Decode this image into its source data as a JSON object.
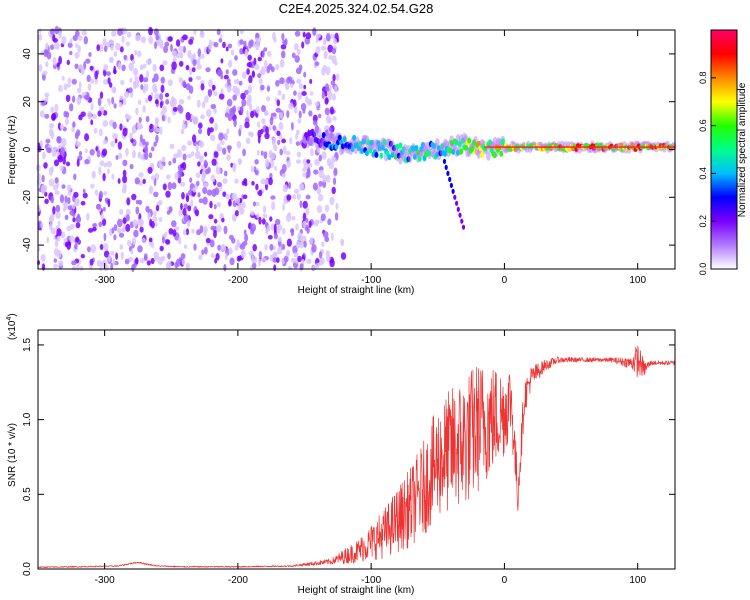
{
  "chart_data": [
    {
      "type": "heatmap",
      "title": "C2E4.2025.324.02.54.G28",
      "xlabel": "Height of straight line (km)",
      "ylabel": "Frequency (Hz)",
      "xlim": [
        -350,
        128
      ],
      "ylim": [
        -50,
        50
      ],
      "xticks": [
        -300,
        -200,
        -100,
        0,
        100
      ],
      "xtick_labels": [
        "-300",
        "-200",
        "-100",
        "0",
        "100"
      ],
      "yticks": [
        -40,
        -20,
        0,
        20,
        40
      ],
      "ytick_labels": [
        "-40",
        "-20",
        "0",
        "20",
        "40"
      ],
      "colorbar": {
        "label": "Normalized spectral amplitude",
        "range": [
          0,
          1
        ],
        "ticks": [
          0.0,
          0.2,
          0.4,
          0.6,
          0.8
        ],
        "tick_labels": [
          "0.0",
          "0.2",
          "0.4",
          "0.6",
          "0.8"
        ],
        "colors": [
          "#ffffff",
          "#b07aff",
          "#7a00ff",
          "#0000ff",
          "#00bfff",
          "#00ff88",
          "#22ff00",
          "#ffff00",
          "#ff8800",
          "#ff0000",
          "#ff0066"
        ]
      },
      "noise_region": {
        "x_range": [
          -350,
          -125
        ],
        "freq_range": [
          -50,
          50
        ],
        "amplitude": "low (0.0–0.15)"
      },
      "signal_trace": {
        "x": [
          -150,
          -130,
          -110,
          -90,
          -70,
          -50,
          -30,
          -15,
          0,
          20,
          50,
          80,
          100,
          128
        ],
        "freq": [
          6,
          3,
          2,
          0,
          -2,
          0,
          2,
          0,
          1,
          1,
          1,
          1,
          1,
          1
        ],
        "amplitude": [
          0.2,
          0.35,
          0.45,
          0.5,
          0.55,
          0.5,
          0.6,
          0.8,
          0.75,
          0.7,
          0.9,
          0.95,
          0.85,
          0.9
        ]
      }
    },
    {
      "type": "line",
      "title": "",
      "xlabel": "Height of straight line (km)",
      "ylabel": "SNR (10 * v/v)",
      "yscale_label": "(x10",
      "yscale_exponent": "4",
      "yscale_suffix": ")",
      "xlim": [
        -350,
        128
      ],
      "ylim": [
        0,
        1.6
      ],
      "xticks": [
        -300,
        -200,
        -100,
        0,
        100
      ],
      "xtick_labels": [
        "-300",
        "-200",
        "-100",
        "0",
        "100"
      ],
      "yticks": [
        0.0,
        0.5,
        1.0,
        1.5
      ],
      "ytick_labels": [
        "0.0",
        "0.5",
        "1.0",
        "1.5"
      ],
      "series": [
        {
          "name": "SNR",
          "color": "#ee3333",
          "x": [
            -350,
            -320,
            -290,
            -275,
            -270,
            -260,
            -240,
            -200,
            -160,
            -130,
            -110,
            -100,
            -90,
            -80,
            -70,
            -60,
            -50,
            -40,
            -30,
            -20,
            -10,
            0,
            5,
            10,
            15,
            20,
            30,
            40,
            60,
            80,
            95,
            100,
            105,
            110,
            128
          ],
          "values": [
            0.012,
            0.015,
            0.02,
            0.045,
            0.035,
            0.02,
            0.015,
            0.015,
            0.02,
            0.05,
            0.12,
            0.18,
            0.24,
            0.33,
            0.42,
            0.55,
            0.72,
            0.8,
            0.85,
            0.95,
            1.0,
            1.05,
            1.15,
            0.5,
            1.15,
            1.28,
            1.36,
            1.4,
            1.4,
            1.4,
            1.38,
            1.4,
            1.34,
            1.38,
            1.38
          ],
          "noise_amplitude": [
            0.004,
            0.004,
            0.004,
            0.005,
            0.005,
            0.004,
            0.004,
            0.004,
            0.005,
            0.02,
            0.08,
            0.12,
            0.17,
            0.22,
            0.27,
            0.32,
            0.38,
            0.42,
            0.45,
            0.45,
            0.38,
            0.3,
            0.25,
            0.15,
            0.12,
            0.08,
            0.04,
            0.02,
            0.015,
            0.015,
            0.04,
            0.12,
            0.05,
            0.015,
            0.015
          ]
        }
      ]
    }
  ]
}
